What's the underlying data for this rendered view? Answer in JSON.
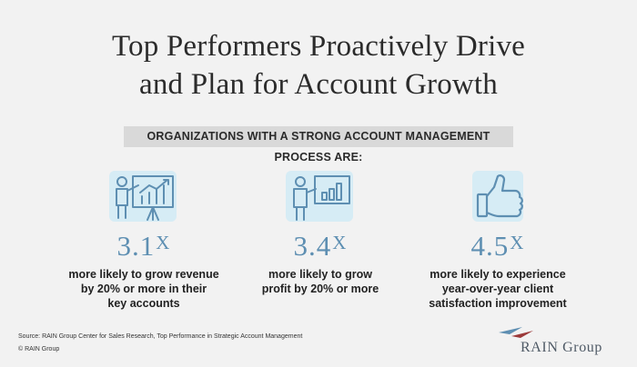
{
  "title": {
    "line1": "Top Performers Proactively Drive",
    "line2": "and Plan for Account Growth"
  },
  "banner": "ORGANIZATIONS WITH A STRONG ACCOUNT MANAGEMENT PROCESS ARE:",
  "stats": [
    {
      "icon": "presenter-chart-icon",
      "value": "3.1",
      "suffix": "X",
      "lines": [
        "more likely to grow revenue",
        "by 20% or more in their",
        "key accounts"
      ]
    },
    {
      "icon": "presenter-board-icon",
      "value": "3.4",
      "suffix": "X",
      "lines": [
        "more likely to grow",
        "profit by 20% or more"
      ]
    },
    {
      "icon": "thumbs-up-icon",
      "value": "4.5",
      "suffix": "X",
      "lines": [
        "more likely to experience",
        "year-over-year client",
        "satisfaction improvement"
      ]
    }
  ],
  "source": "Source: RAIN Group Center for Sales Research, Top Performance in Strategic Account Management",
  "copyright": "© RAIN Group",
  "logo": {
    "text": "RAIN Group"
  },
  "colors": {
    "accent": "#5e8fb2",
    "icon_glow": "#d6ecf5",
    "banner_bg": "#d9d9d9",
    "background": "#f2f2f2"
  }
}
